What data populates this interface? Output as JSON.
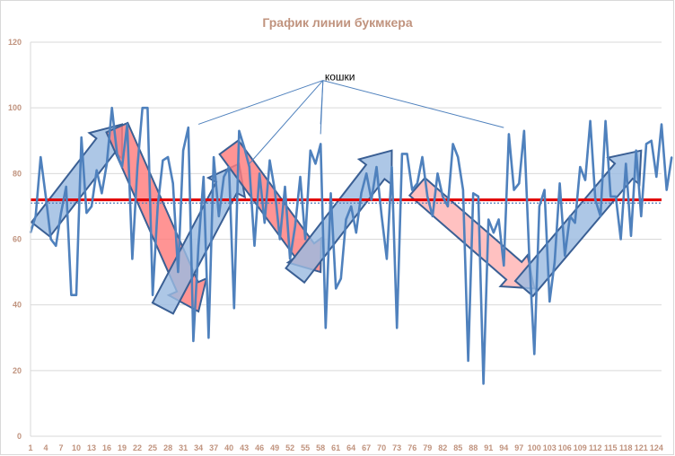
{
  "chart_data": {
    "type": "line",
    "title": "График линии букмкера",
    "xlabel": "",
    "ylabel": "",
    "ylim": [
      0,
      120
    ],
    "yticks": [
      "0",
      "20",
      "40",
      "60",
      "80",
      "100",
      "120"
    ],
    "xlim": [
      1,
      125
    ],
    "xticks": [
      "1",
      "4",
      "7",
      "10",
      "13",
      "16",
      "19",
      "22",
      "25",
      "28",
      "31",
      "34",
      "37",
      "40",
      "43",
      "46",
      "49",
      "52",
      "55",
      "58",
      "61",
      "64",
      "67",
      "70",
      "73",
      "76",
      "79",
      "82",
      "85",
      "88",
      "91",
      "94",
      "97",
      "100",
      "103",
      "106",
      "109",
      "112",
      "115",
      "118",
      "121",
      "124"
    ],
    "grid": "horizontal",
    "legend": "none",
    "series": [
      {
        "color": "#4f81bd",
        "values": [
          62,
          67,
          85,
          73,
          60,
          58,
          68,
          76,
          43,
          43,
          91,
          68,
          70,
          81,
          74,
          83,
          100,
          86,
          82,
          95,
          54,
          82,
          100,
          100,
          43,
          70,
          84,
          85,
          77,
          50,
          87,
          94,
          29,
          58,
          79,
          30,
          85,
          67,
          79,
          82,
          39,
          93,
          88,
          82,
          58,
          80,
          65,
          84,
          75,
          60,
          76,
          54,
          64,
          79,
          60,
          87,
          83,
          89,
          33,
          74,
          45,
          48,
          66,
          70,
          62,
          74,
          80,
          72,
          82,
          67,
          54,
          82,
          33,
          86,
          86,
          75,
          77,
          85,
          73,
          67,
          80,
          73,
          70,
          89,
          85,
          75,
          23,
          74,
          73,
          16,
          66,
          62,
          66,
          52,
          92,
          75,
          77,
          93,
          55,
          25,
          70,
          75,
          41,
          53,
          77,
          55,
          67,
          65,
          82,
          78,
          96,
          72,
          67,
          96,
          73,
          73,
          60,
          83,
          61,
          87,
          67,
          89,
          90,
          79,
          95,
          75,
          85
        ]
      }
    ],
    "reference_lines": [
      {
        "value": 72,
        "color": "#e00000",
        "style": "solid"
      },
      {
        "value": 71,
        "color": "#4f81bd",
        "style": "dotted"
      }
    ],
    "arrows": [
      {
        "color": "#9bbbe0",
        "from": [
          3,
          63
        ],
        "to": [
          19,
          95
        ]
      },
      {
        "color": "#ff7c7c",
        "from": [
          18,
          94
        ],
        "to": [
          34,
          38
        ]
      },
      {
        "color": "#9bbbe0",
        "from": [
          27,
          39
        ],
        "to": [
          42,
          83
        ]
      },
      {
        "color": "#ff7c7c",
        "from": [
          40,
          88
        ],
        "to": [
          58,
          50
        ]
      },
      {
        "color": "#9bbbe0",
        "from": [
          53,
          49
        ],
        "to": [
          72,
          87
        ]
      },
      {
        "color": "#ffb3b3",
        "from": [
          77,
          76
        ],
        "to": [
          100,
          45
        ]
      },
      {
        "color": "#9bbbe0",
        "from": [
          98,
          45
        ],
        "to": [
          121,
          87
        ]
      }
    ],
    "annotation": {
      "text": "кошки",
      "anchor": [
        59,
        110
      ],
      "targets": [
        [
          34,
          95
        ],
        [
          44,
          83
        ],
        [
          58,
          92
        ],
        [
          58,
          95
        ],
        [
          94,
          94
        ]
      ]
    }
  }
}
